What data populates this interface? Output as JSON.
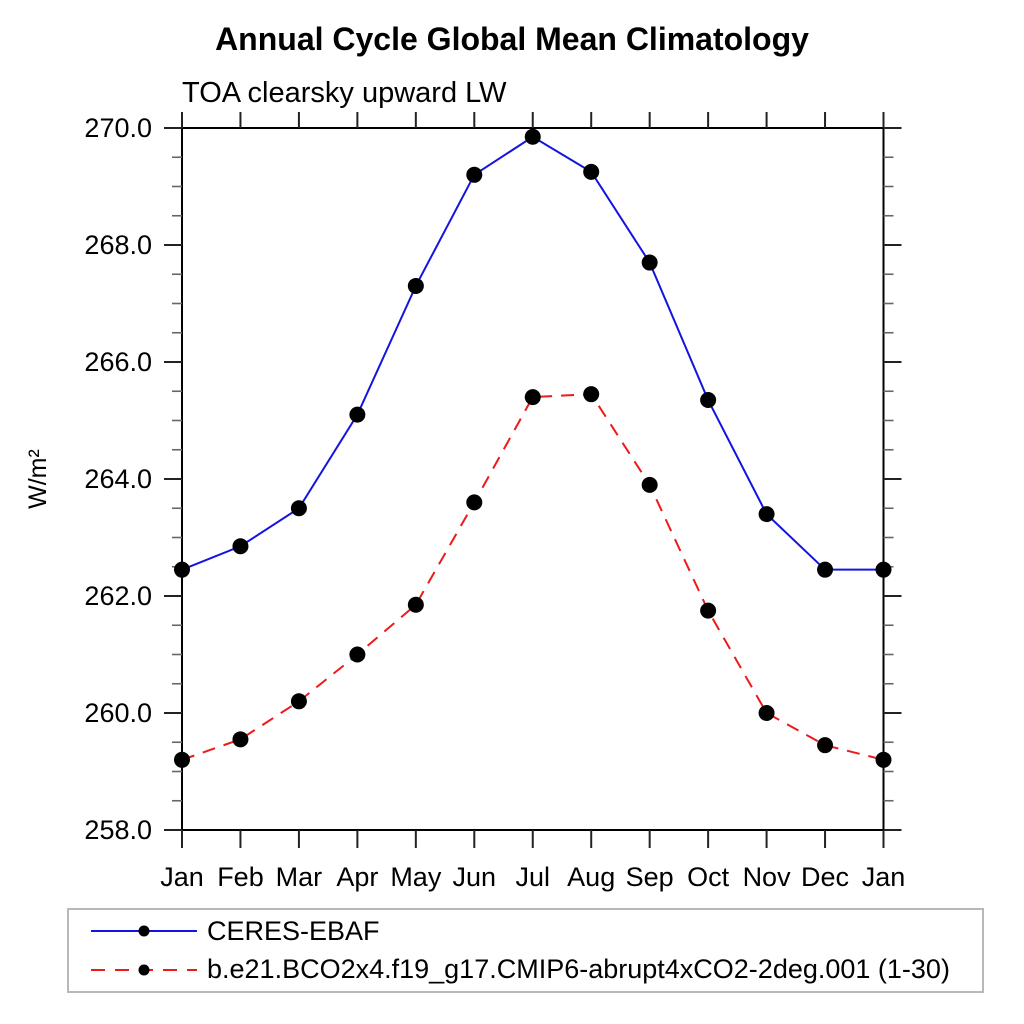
{
  "page": {
    "background": "#ffffff",
    "text_color": "#000000",
    "axis_color": "#000000",
    "legend_border_color": "#b8b8b8"
  },
  "chart_data": {
    "type": "line",
    "title": "Annual Cycle Global Mean Climatology",
    "subtitle": "TOA clearsky upward LW",
    "ylabel": "W/m²",
    "xlabel": "",
    "ylim": [
      258.0,
      270.0
    ],
    "y_major_ticks": [
      258.0,
      260.0,
      262.0,
      264.0,
      266.0,
      268.0,
      270.0
    ],
    "y_major_tick_labels": [
      "258.0",
      "260.0",
      "262.0",
      "264.0",
      "266.0",
      "268.0",
      "270.0"
    ],
    "y_minor_step": 0.5,
    "grid": false,
    "legend_position": "bottom",
    "categories": [
      "Jan",
      "Feb",
      "Mar",
      "Apr",
      "May",
      "Jun",
      "Jul",
      "Aug",
      "Sep",
      "Oct",
      "Nov",
      "Dec",
      "Jan"
    ],
    "series": [
      {
        "name": "CERES-EBAF",
        "color": "#1414e0",
        "line_style": "solid",
        "marker": "filled-circle",
        "marker_color": "#000000",
        "values": [
          262.45,
          262.85,
          263.5,
          265.1,
          267.3,
          269.2,
          269.85,
          269.25,
          267.7,
          265.35,
          263.4,
          262.45,
          262.45
        ]
      },
      {
        "name": "b.e21.BCO2x4.f19_g17.CMIP6-abrupt4xCO2-2deg.001 (1-30)",
        "color": "#ee1a1a",
        "line_style": "dashed",
        "marker": "filled-circle",
        "marker_color": "#000000",
        "values": [
          259.2,
          259.55,
          260.2,
          261.0,
          261.85,
          263.6,
          265.4,
          265.45,
          263.9,
          261.75,
          260.0,
          259.45,
          259.2
        ]
      }
    ]
  }
}
